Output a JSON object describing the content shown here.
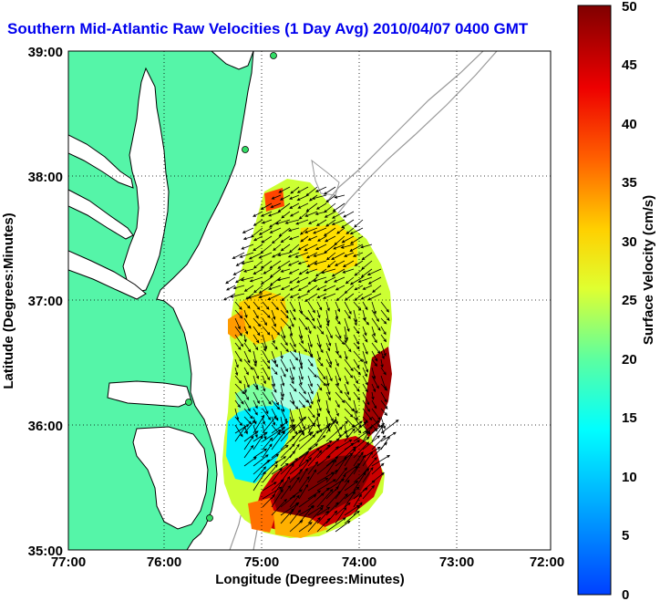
{
  "title": "Southern Mid-Atlantic Raw Velocities (1 Day Avg) 2010/04/07 0400 GMT",
  "x_axis": {
    "label": "Longitude (Degrees:Minutes)",
    "ticks": [
      "77:00",
      "76:00",
      "75:00",
      "74:00",
      "73:00",
      "72:00"
    ]
  },
  "y_axis": {
    "label": "Latitude (Degrees:Minutes)",
    "ticks": [
      "39:00",
      "38:00",
      "37:00",
      "36:00",
      "35:00"
    ]
  },
  "colorbar": {
    "label": "Surface Velocity (cm/s)",
    "ticks": [
      "50",
      "45",
      "40",
      "35",
      "30",
      "25",
      "20",
      "15",
      "10",
      "5",
      "0"
    ],
    "min": 0,
    "max": 50
  },
  "colors": {
    "land": "#55f5a8",
    "water": "#ffffff",
    "coast": "#000000",
    "bathymetry": "#999999",
    "title": "#0000ee"
  }
}
